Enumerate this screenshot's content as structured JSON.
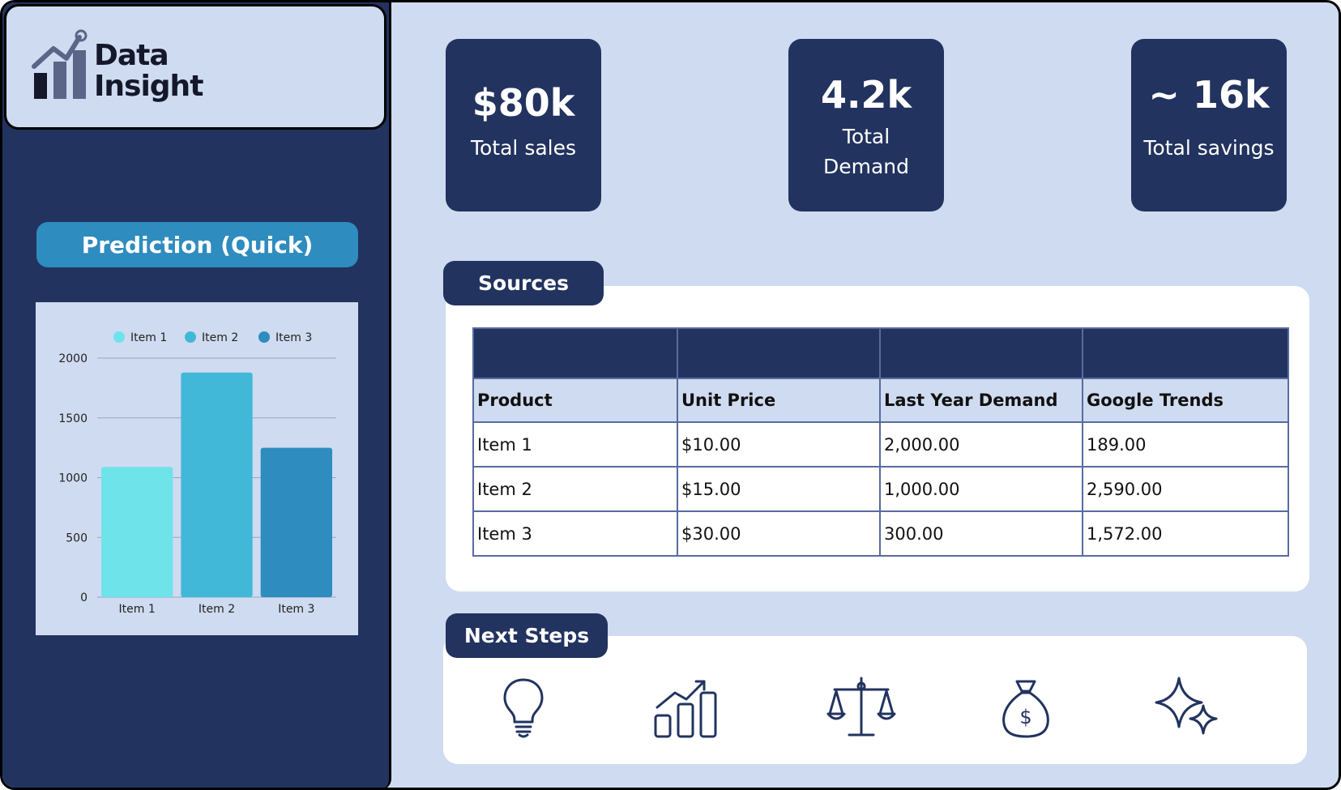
{
  "brand": {
    "line1": "Data",
    "line2": "Insight"
  },
  "sidebar": {
    "prediction_label": "Prediction (Quick)"
  },
  "kpis": [
    {
      "value": "$80k",
      "label": "Total sales"
    },
    {
      "value": "4.2k",
      "label_line1": "Total",
      "label_line2": "Demand"
    },
    {
      "value": "~ 16k",
      "label": "Total savings"
    }
  ],
  "sources": {
    "title": "Sources",
    "columns": [
      "Product",
      "Unit Price",
      "Last Year Demand",
      "Google Trends"
    ],
    "rows": [
      [
        "Item 1",
        "$10.00",
        "2,000.00",
        "189.00"
      ],
      [
        "Item 2",
        "$15.00",
        "1,000.00",
        "2,590.00"
      ],
      [
        "Item 3",
        "$30.00",
        "300.00",
        "1,572.00"
      ]
    ]
  },
  "next_steps": {
    "title": "Next Steps",
    "icons": [
      "lightbulb-icon",
      "growth-chart-icon",
      "balance-scale-icon",
      "money-bag-icon",
      "sparkle-icon"
    ]
  },
  "colors": {
    "navy": "#22335f",
    "light_blue_bg": "#cfdbf0",
    "item1": "#6fe3ea",
    "item2": "#41b8d8",
    "item3": "#2e8cbf"
  },
  "chart_data": {
    "type": "bar",
    "categories": [
      "Item 1",
      "Item 2",
      "Item 3"
    ],
    "values": [
      1090,
      1880,
      1250
    ],
    "legend": [
      "Item 1",
      "Item 2",
      "Item 3"
    ],
    "ylim": [
      0,
      2000
    ],
    "yticks": [
      0,
      500,
      1000,
      1500,
      2000
    ],
    "grid": true,
    "legend_position": "top"
  }
}
